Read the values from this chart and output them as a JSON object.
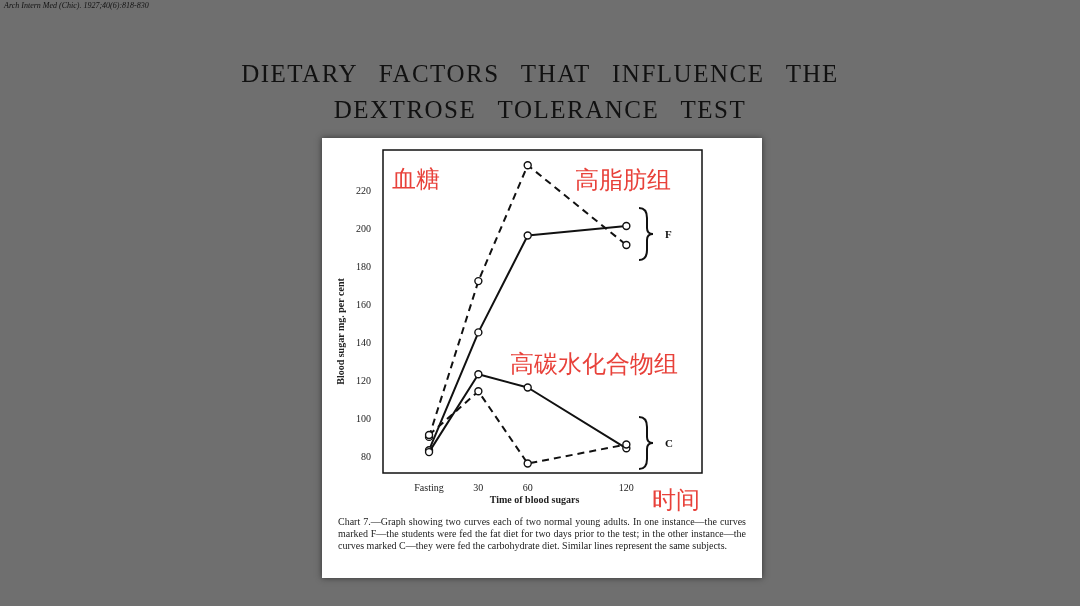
{
  "chart_data": {
    "type": "line",
    "title": "DIETARY FACTORS THAT INFLUENCE THE DEXTROSE TOLERANCE TEST",
    "subtitle": "Arch Intern Med (Chic). 1927;40(6):818-830",
    "xlabel": "Time of blood sugars",
    "ylabel": "Blood sugar mg. per cent",
    "x": [
      0,
      30,
      60,
      120
    ],
    "series": [
      {
        "color": "#111111",
        "line_style": "solid",
        "values": [
          83,
          145,
          196,
          201
        ]
      },
      {
        "color": "#111111",
        "line_style": "dashed",
        "values": [
          90,
          172,
          233,
          191
        ]
      },
      {
        "color": "#111111",
        "line_style": "solid",
        "values": [
          82,
          123,
          116,
          84
        ]
      },
      {
        "color": "#111111",
        "line_style": "dashed",
        "values": [
          91,
          114,
          76,
          86
        ]
      }
    ],
    "marker": "circle",
    "xlim": [
      -28,
      166
    ],
    "ylim": [
      71,
      241
    ],
    "xticks": [
      {
        "value": 0,
        "label": "Fasting"
      },
      30,
      60,
      120
    ],
    "yticks": [
      80,
      100,
      120,
      140,
      160,
      180,
      200,
      220
    ],
    "annotations": [
      "血糖",
      "高脂肪组",
      "高碳水化合物组",
      "时间",
      "F",
      "C",
      "Chart 7.—Graph showing two curves each of two normal young adults. In one instance—the curves marked F—the students were fed the fat diet for two days prior to the test; in the other instance—the curves marked C—they were fed the carbohydrate diet. Similar lines represent the same subjects."
    ]
  }
}
